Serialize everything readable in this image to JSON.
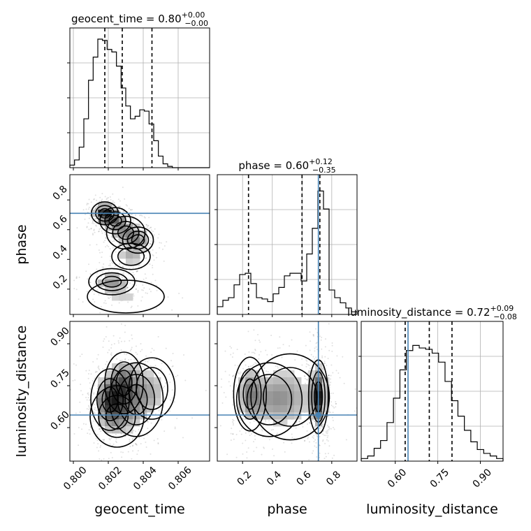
{
  "chart_data": {
    "type": "corner",
    "truth_color": "#4682b4",
    "parameters": [
      {
        "name": "geocent_time",
        "title_main": "geocent_time = 0.80",
        "title_plus": "+0.00",
        "title_minus": "−0.00",
        "range": [
          0.7998,
          0.8078
        ],
        "ticks": [
          0.8,
          0.802,
          0.804,
          0.806
        ],
        "tick_labels": [
          "0.800",
          "0.802",
          "0.804",
          "0.806"
        ],
        "quantiles": [
          0.8018,
          0.8028,
          0.8045
        ],
        "truth": null,
        "hist_edges": [
          0.7998,
          0.8078
        ],
        "hist_counts": [
          0.02,
          0.06,
          0.16,
          0.38,
          0.68,
          0.86,
          1.0,
          0.99,
          0.92,
          0.9,
          0.79,
          0.62,
          0.48,
          0.38,
          0.4,
          0.45,
          0.44,
          0.34,
          0.21,
          0.09,
          0.03,
          0.01,
          0.0,
          0.0,
          0.0,
          0.0,
          0.0,
          0.0,
          0.0,
          0.0
        ]
      },
      {
        "name": "phase",
        "title_main": "phase = 0.60",
        "title_plus": "+0.12",
        "title_minus": "−0.35",
        "range": [
          0.03,
          0.97
        ],
        "ticks": [
          0.2,
          0.4,
          0.6,
          0.8
        ],
        "tick_labels": [
          "0.2",
          "0.4",
          "0.6",
          "0.8"
        ],
        "quantiles": [
          0.24,
          0.6,
          0.72
        ],
        "truth": 0.71,
        "hist_counts": [
          0.06,
          0.11,
          0.13,
          0.23,
          0.31,
          0.32,
          0.24,
          0.13,
          0.12,
          0.1,
          0.16,
          0.21,
          0.3,
          0.32,
          0.32,
          0.26,
          0.47,
          0.67,
          0.96,
          0.82,
          0.19,
          0.13,
          0.09,
          0.05,
          0.02
        ]
      },
      {
        "name": "luminosity_distance",
        "title_main": "luminosity_distance = 0.72",
        "title_plus": "+0.09",
        "title_minus": "−0.08",
        "range": [
          0.48,
          0.98
        ],
        "ticks": [
          0.6,
          0.75,
          0.9
        ],
        "tick_labels": [
          "0.60",
          "0.75",
          "0.90"
        ],
        "quantiles": [
          0.635,
          0.72,
          0.8
        ],
        "truth": 0.645,
        "hist_counts": [
          0.02,
          0.04,
          0.1,
          0.16,
          0.3,
          0.49,
          0.71,
          0.86,
          0.9,
          0.88,
          0.87,
          0.84,
          0.77,
          0.62,
          0.47,
          0.35,
          0.24,
          0.15,
          0.09,
          0.06,
          0.04,
          0.02
        ]
      }
    ],
    "ylabel_tick_labels": {
      "phase": [
        "0.2",
        "0.4",
        "0.6",
        "0.8"
      ],
      "luminosity_distance": [
        "0.60",
        "0.75",
        "0.90"
      ]
    },
    "pairs": [
      {
        "x": "geocent_time",
        "y": "phase",
        "density_blobs": [
          {
            "cx": 0.8018,
            "cy": 0.71,
            "sx": 0.00035,
            "sy": 0.035,
            "w": 1.0
          },
          {
            "cx": 0.8024,
            "cy": 0.66,
            "sx": 0.0004,
            "sy": 0.04,
            "w": 0.55
          },
          {
            "cx": 0.803,
            "cy": 0.58,
            "sx": 0.0005,
            "sy": 0.05,
            "w": 0.45
          },
          {
            "cx": 0.8037,
            "cy": 0.53,
            "sx": 0.0004,
            "sy": 0.04,
            "w": 0.45
          },
          {
            "cx": 0.8033,
            "cy": 0.42,
            "sx": 0.0005,
            "sy": 0.04,
            "w": 0.35
          },
          {
            "cx": 0.8022,
            "cy": 0.25,
            "sx": 0.0006,
            "sy": 0.04,
            "w": 0.45
          },
          {
            "cx": 0.803,
            "cy": 0.15,
            "sx": 0.001,
            "sy": 0.05,
            "w": 0.2
          }
        ],
        "truth_x": null,
        "truth_y": 0.71
      },
      {
        "x": "geocent_time",
        "y": "luminosity_distance",
        "density_blobs": [
          {
            "cx": 0.8021,
            "cy": 0.7,
            "sx": 0.0005,
            "sy": 0.05,
            "w": 1.0
          },
          {
            "cx": 0.8029,
            "cy": 0.76,
            "sx": 0.0005,
            "sy": 0.05,
            "w": 0.8
          },
          {
            "cx": 0.8036,
            "cy": 0.7,
            "sx": 0.0007,
            "sy": 0.06,
            "w": 0.5
          },
          {
            "cx": 0.8045,
            "cy": 0.74,
            "sx": 0.0006,
            "sy": 0.05,
            "w": 0.35
          },
          {
            "cx": 0.8025,
            "cy": 0.64,
            "sx": 0.0007,
            "sy": 0.05,
            "w": 0.5
          }
        ],
        "truth_x": null,
        "truth_y": 0.645
      },
      {
        "x": "phase",
        "y": "luminosity_distance",
        "density_blobs": [
          {
            "cx": 0.71,
            "cy": 0.71,
            "sx": 0.03,
            "sy": 0.06,
            "w": 1.0
          },
          {
            "cx": 0.25,
            "cy": 0.72,
            "sx": 0.05,
            "sy": 0.06,
            "w": 0.5
          },
          {
            "cx": 0.52,
            "cy": 0.71,
            "sx": 0.12,
            "sy": 0.07,
            "w": 0.35
          },
          {
            "cx": 0.38,
            "cy": 0.7,
            "sx": 0.1,
            "sy": 0.06,
            "w": 0.3
          }
        ],
        "truth_x": 0.71,
        "truth_y": 0.645
      }
    ],
    "grid": true
  }
}
